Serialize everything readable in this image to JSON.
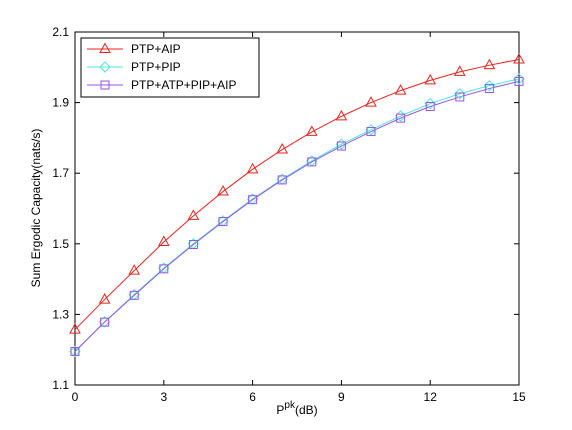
{
  "chart_data": {
    "type": "line",
    "title": "",
    "xlabel": "P",
    "xlabel_superscript": "pk",
    "xlabel_suffix": "(dB)",
    "ylabel": "Sum Ergodic Capacity(nats/s)",
    "xlim": [
      0,
      15
    ],
    "ylim": [
      1.1,
      2.1
    ],
    "xticks": [
      0,
      3,
      6,
      9,
      12,
      15
    ],
    "yticks": [
      1.1,
      1.3,
      1.5,
      1.7,
      1.9,
      2.1
    ],
    "grid": false,
    "legend_position": "top-left",
    "x": [
      0,
      1,
      2,
      3,
      4,
      5,
      6,
      7,
      8,
      9,
      10,
      11,
      12,
      13,
      14,
      15
    ],
    "series": [
      {
        "name": "PTP+AIP",
        "color": "#e8241f",
        "marker": "triangle",
        "values": [
          1.257,
          1.342,
          1.424,
          1.505,
          1.579,
          1.648,
          1.711,
          1.767,
          1.817,
          1.861,
          1.9,
          1.934,
          1.963,
          1.987,
          2.006,
          2.022
        ]
      },
      {
        "name": "PTP+PIP",
        "color": "#4fe6dc",
        "marker": "diamond",
        "values": [
          1.195,
          1.279,
          1.356,
          1.431,
          1.5,
          1.565,
          1.627,
          1.683,
          1.735,
          1.782,
          1.823,
          1.862,
          1.897,
          1.925,
          1.948,
          1.967
        ]
      },
      {
        "name": "PTP+ATP+PIP+AIP",
        "color": "#9a55e0",
        "marker": "square",
        "values": [
          1.195,
          1.278,
          1.354,
          1.429,
          1.498,
          1.563,
          1.625,
          1.681,
          1.732,
          1.777,
          1.818,
          1.856,
          1.889,
          1.916,
          1.94,
          1.96
        ]
      }
    ]
  }
}
